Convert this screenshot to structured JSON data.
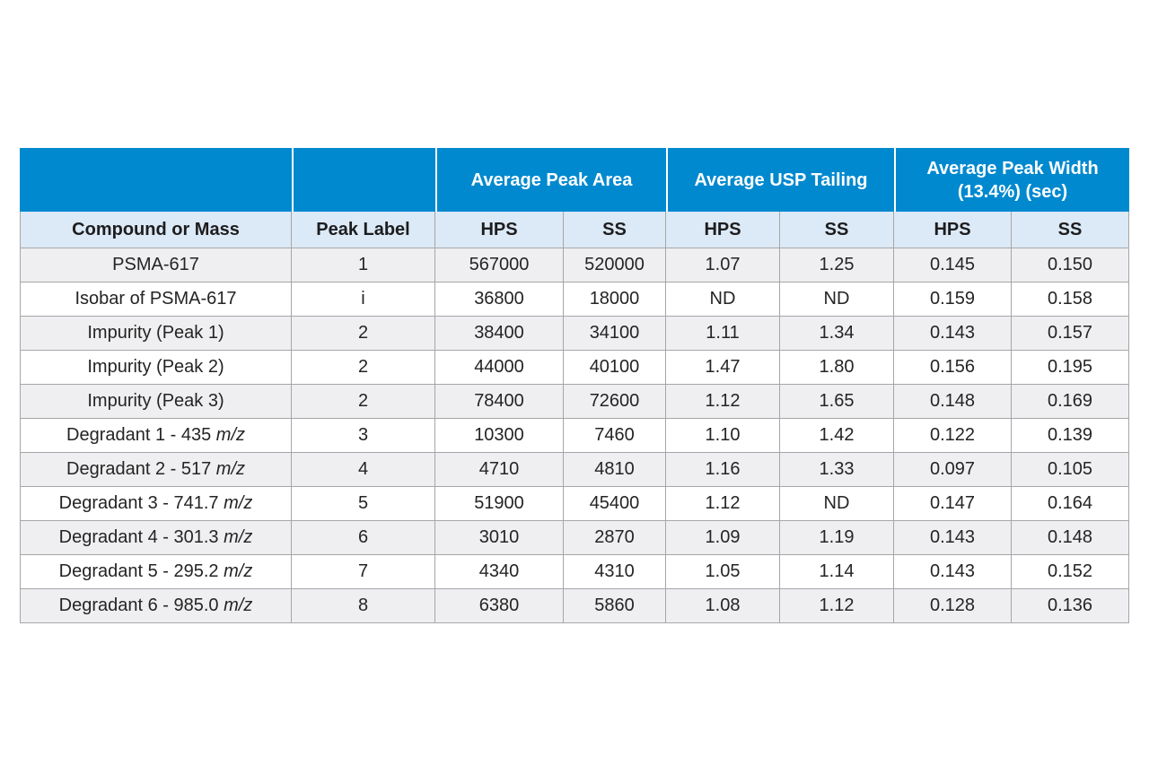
{
  "colors": {
    "header_blue": "#0089cf",
    "subheader_bg": "#dce9f6",
    "stripe_bg": "#efeff1",
    "row_bg": "#ffffff",
    "grid_border": "#a6a6a8",
    "header_text": "#ffffff",
    "body_text": "#242424"
  },
  "table": {
    "group_headers": [
      {
        "label": "Average Peak Area"
      },
      {
        "label": "Average USP Tailing"
      },
      {
        "label": "Average Peak Width (13.4%) (sec)"
      }
    ],
    "columns": [
      "Compound or Mass",
      "Peak Label",
      "HPS",
      "SS",
      "HPS",
      "SS",
      "HPS",
      "SS"
    ],
    "rows": [
      {
        "compound": "PSMA-617",
        "compound_italic": "",
        "peak_label": "1",
        "peak_area_hps": "567000",
        "peak_area_ss": "520000",
        "usp_tailing_hps": "1.07",
        "usp_tailing_ss": "1.25",
        "peak_width_hps": "0.145",
        "peak_width_ss": "0.150"
      },
      {
        "compound": "Isobar of PSMA-617",
        "compound_italic": "",
        "peak_label": "i",
        "peak_area_hps": "36800",
        "peak_area_ss": "18000",
        "usp_tailing_hps": "ND",
        "usp_tailing_ss": "ND",
        "peak_width_hps": "0.159",
        "peak_width_ss": "0.158"
      },
      {
        "compound": "Impurity (Peak 1)",
        "compound_italic": "",
        "peak_label": "2",
        "peak_area_hps": "38400",
        "peak_area_ss": "34100",
        "usp_tailing_hps": "1.11",
        "usp_tailing_ss": "1.34",
        "peak_width_hps": "0.143",
        "peak_width_ss": "0.157"
      },
      {
        "compound": "Impurity (Peak 2)",
        "compound_italic": "",
        "peak_label": "2",
        "peak_area_hps": "44000",
        "peak_area_ss": "40100",
        "usp_tailing_hps": "1.47",
        "usp_tailing_ss": "1.80",
        "peak_width_hps": "0.156",
        "peak_width_ss": "0.195"
      },
      {
        "compound": "Impurity (Peak 3)",
        "compound_italic": "",
        "peak_label": "2",
        "peak_area_hps": "78400",
        "peak_area_ss": "72600",
        "usp_tailing_hps": "1.12",
        "usp_tailing_ss": "1.65",
        "peak_width_hps": "0.148",
        "peak_width_ss": "0.169"
      },
      {
        "compound": "Degradant 1 - 435 ",
        "compound_italic": "m/z",
        "peak_label": "3",
        "peak_area_hps": "10300",
        "peak_area_ss": "7460",
        "usp_tailing_hps": "1.10",
        "usp_tailing_ss": "1.42",
        "peak_width_hps": "0.122",
        "peak_width_ss": "0.139"
      },
      {
        "compound": "Degradant 2 - 517 ",
        "compound_italic": "m/z",
        "peak_label": "4",
        "peak_area_hps": "4710",
        "peak_area_ss": "4810",
        "usp_tailing_hps": "1.16",
        "usp_tailing_ss": "1.33",
        "peak_width_hps": "0.097",
        "peak_width_ss": "0.105"
      },
      {
        "compound": "Degradant 3 - 741.7 ",
        "compound_italic": "m/z",
        "peak_label": "5",
        "peak_area_hps": "51900",
        "peak_area_ss": "45400",
        "usp_tailing_hps": "1.12",
        "usp_tailing_ss": "ND",
        "peak_width_hps": "0.147",
        "peak_width_ss": "0.164"
      },
      {
        "compound": "Degradant 4 - 301.3 ",
        "compound_italic": "m/z",
        "peak_label": "6",
        "peak_area_hps": "3010",
        "peak_area_ss": "2870",
        "usp_tailing_hps": "1.09",
        "usp_tailing_ss": "1.19",
        "peak_width_hps": "0.143",
        "peak_width_ss": "0.148"
      },
      {
        "compound": "Degradant 5 - 295.2 ",
        "compound_italic": "m/z",
        "peak_label": "7",
        "peak_area_hps": "4340",
        "peak_area_ss": "4310",
        "usp_tailing_hps": "1.05",
        "usp_tailing_ss": "1.14",
        "peak_width_hps": "0.143",
        "peak_width_ss": "0.152"
      },
      {
        "compound": "Degradant 6 - 985.0 ",
        "compound_italic": "m/z",
        "peak_label": "8",
        "peak_area_hps": "6380",
        "peak_area_ss": "5860",
        "usp_tailing_hps": "1.08",
        "usp_tailing_ss": "1.12",
        "peak_width_hps": "0.128",
        "peak_width_ss": "0.136"
      }
    ]
  }
}
